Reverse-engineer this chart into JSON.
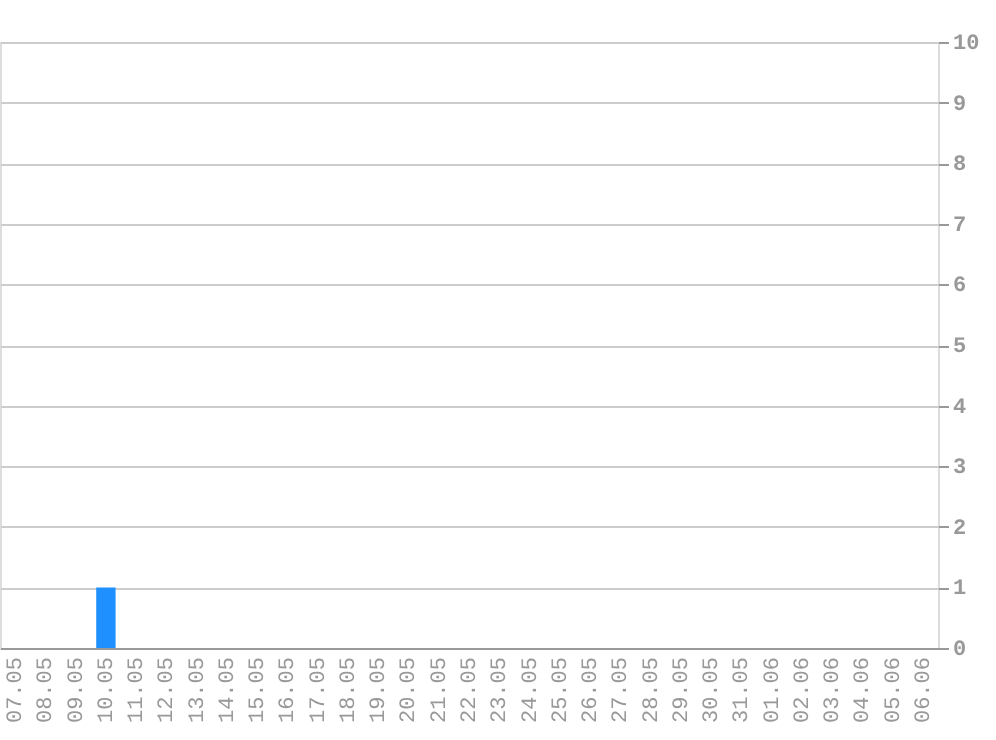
{
  "chart_data": {
    "type": "bar",
    "categories": [
      "07.05",
      "08.05",
      "09.05",
      "10.05",
      "11.05",
      "12.05",
      "13.05",
      "14.05",
      "15.05",
      "16.05",
      "17.05",
      "18.05",
      "19.05",
      "20.05",
      "21.05",
      "22.05",
      "23.05",
      "24.05",
      "25.05",
      "26.05",
      "27.05",
      "28.05",
      "29.05",
      "30.05",
      "31.05",
      "01.06",
      "02.06",
      "03.06",
      "04.06",
      "05.06",
      "06.06"
    ],
    "values": [
      0,
      0,
      0,
      1,
      0,
      0,
      0,
      0,
      0,
      0,
      0,
      0,
      0,
      0,
      0,
      0,
      0,
      0,
      0,
      0,
      0,
      0,
      0,
      0,
      0,
      0,
      0,
      0,
      0,
      0,
      0
    ],
    "color": "#1e90ff",
    "ylim": [
      0,
      10
    ],
    "yticks": [
      0,
      1,
      2,
      3,
      4,
      5,
      6,
      7,
      8,
      9,
      10
    ],
    "grid": "y"
  }
}
